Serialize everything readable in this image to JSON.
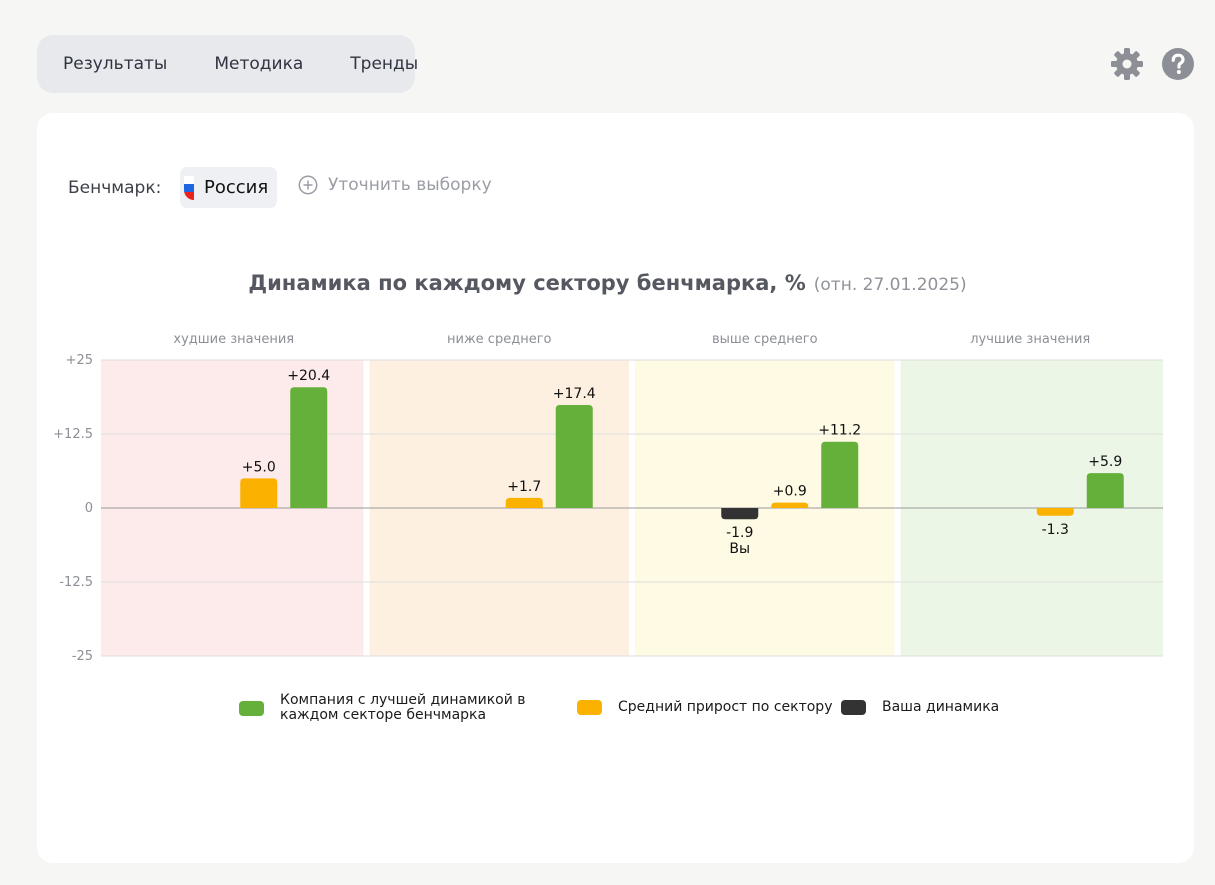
{
  "tabs": [
    {
      "label": "Результаты"
    },
    {
      "label": "Методика"
    },
    {
      "label": "Тренды"
    }
  ],
  "icons": {
    "settings": "gear-icon",
    "help": "help-icon"
  },
  "benchmark": {
    "label": "Бенчмарк:",
    "region": "Россия",
    "refine_label": "Уточнить выборку"
  },
  "chart_title": "Динамика по каждому сектору бенчмарка, %",
  "chart_subtitle": "(отн. 27.01.2025)",
  "colors": {
    "best": "#65b03a",
    "average": "#fbb100",
    "yours": "#333333",
    "zone_worst": "#fdeaea",
    "zone_below": "#fdf0e1",
    "zone_above": "#fefae3",
    "zone_best": "#ecf6e6"
  },
  "chart_data": {
    "type": "bar",
    "categories": [
      "худшие значения",
      "ниже среднего",
      "выше среднего",
      "лучшие значения"
    ],
    "y_ticks": [
      "+25",
      "+12.5",
      "0",
      "-12.5",
      "-25"
    ],
    "ylim": [
      -25,
      25
    ],
    "series": [
      {
        "name": "Ваша динамика",
        "key": "yours",
        "values": [
          null,
          null,
          -1.9,
          null
        ],
        "labels": [
          null,
          null,
          "-1.9",
          null
        ]
      },
      {
        "name": "Средний прирост по сектору",
        "key": "average",
        "values": [
          5.0,
          1.7,
          0.9,
          -1.3
        ],
        "labels": [
          "+5.0",
          "+1.7",
          "+0.9",
          "-1.3"
        ]
      },
      {
        "name": "Компания с лучшей динамикой в каждом секторе бенчмарка",
        "key": "best",
        "values": [
          20.4,
          17.4,
          11.2,
          5.9
        ],
        "labels": [
          "+20.4",
          "+17.4",
          "+11.2",
          "+5.9"
        ]
      }
    ],
    "your_marker_label": "Вы",
    "grid": true
  },
  "legend": [
    {
      "key": "best",
      "line1": "Компания с лучшей динамикой в",
      "line2": "каждом секторе бенчмарка"
    },
    {
      "key": "average",
      "line1": "Средний прирост по сектору",
      "line2": ""
    },
    {
      "key": "yours",
      "line1": "Ваша динамика",
      "line2": ""
    }
  ]
}
